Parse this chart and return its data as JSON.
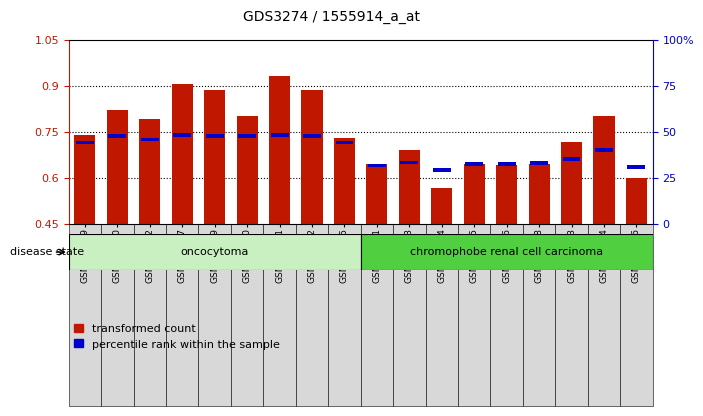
{
  "title": "GDS3274 / 1555914_a_at",
  "samples": [
    "GSM305099",
    "GSM305100",
    "GSM305102",
    "GSM305107",
    "GSM305109",
    "GSM305110",
    "GSM305111",
    "GSM305112",
    "GSM305115",
    "GSM305101",
    "GSM305103",
    "GSM305104",
    "GSM305105",
    "GSM305106",
    "GSM305108",
    "GSM305113",
    "GSM305114",
    "GSM305116"
  ],
  "transformed_count": [
    0.74,
    0.82,
    0.79,
    0.905,
    0.885,
    0.8,
    0.93,
    0.885,
    0.73,
    0.645,
    0.69,
    0.565,
    0.645,
    0.64,
    0.645,
    0.715,
    0.8,
    0.6
  ],
  "percentile_rank_left": [
    0.715,
    0.735,
    0.725,
    0.74,
    0.735,
    0.735,
    0.74,
    0.735,
    0.715,
    0.64,
    0.65,
    0.625,
    0.645,
    0.645,
    0.648,
    0.66,
    0.69,
    0.635
  ],
  "bar_color_red": "#C01800",
  "bar_color_blue": "#0000CC",
  "ylim_left": [
    0.45,
    1.05
  ],
  "ylim_right": [
    0,
    100
  ],
  "yticks_left": [
    0.45,
    0.6,
    0.75,
    0.9,
    1.05
  ],
  "ytick_labels_left": [
    "0.45",
    "0.6",
    "0.75",
    "0.9",
    "1.05"
  ],
  "yticks_right": [
    0,
    25,
    50,
    75,
    100
  ],
  "ytick_labels_right": [
    "0",
    "25",
    "50",
    "75",
    "100%"
  ],
  "grid_lines": [
    0.6,
    0.75,
    0.9
  ],
  "oncocytoma_count": 9,
  "group_labels": [
    "oncocytoma",
    "chromophobe renal cell carcinoma"
  ],
  "group_colors": [
    "#C8F0C0",
    "#50D040"
  ],
  "disease_state_label": "disease state",
  "legend_red_label": "transformed count",
  "legend_blue_label": "percentile rank within the sample",
  "bar_width": 0.65,
  "base_value": 0.45
}
